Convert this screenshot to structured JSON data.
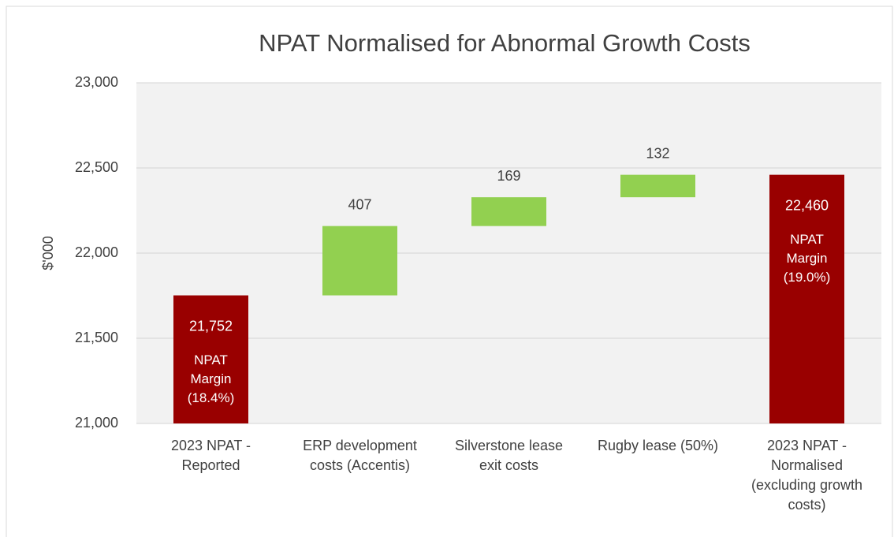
{
  "chart_data": {
    "type": "waterfall",
    "title": "NPAT Normalised for Abnormal Growth Costs",
    "y_label": "$'000",
    "categories": [
      "2023 NPAT - Reported",
      "ERP development costs (Accentis)",
      "Silverstone lease exit costs",
      "Rugby lease (50%)",
      "2023 NPAT - Normalised (excluding growth costs)"
    ],
    "values": [
      21752,
      407,
      169,
      132,
      22460
    ],
    "value_labels": [
      "21,752",
      "407",
      "169",
      "132",
      "22,460"
    ],
    "measures": [
      "total",
      "relative",
      "relative",
      "relative",
      "total"
    ],
    "colors": {
      "total": "#990000",
      "relative": "#92d050"
    },
    "annotations": [
      "NPAT Margin (18.4%)",
      null,
      null,
      null,
      "NPAT Margin (19.0%)"
    ],
    "ylim": [
      21000,
      23000
    ],
    "yticks": [
      {
        "value": 21000,
        "label": "21,000"
      },
      {
        "value": 21500,
        "label": "21,500"
      },
      {
        "value": 22000,
        "label": "22,000"
      },
      {
        "value": 22500,
        "label": "22,500"
      },
      {
        "value": 23000,
        "label": "23,000"
      }
    ],
    "grid": true
  }
}
